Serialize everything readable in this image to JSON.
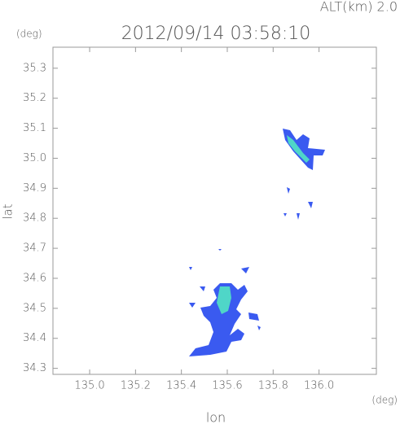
{
  "chart_data": {
    "type": "radar-map",
    "title": "2012/09/14 03:58:10",
    "altitude_label": "ALT(km)  2.0",
    "x_label": "lon",
    "y_label": "lat",
    "x_unit": "(deg)",
    "y_unit": "(deg)",
    "xlim": [
      134.84,
      136.25
    ],
    "ylim": [
      34.28,
      35.37
    ],
    "xticks": [
      {
        "value": 135.0,
        "label": "135.0"
      },
      135.2,
      135.4,
      135.6,
      135.8,
      {
        "value": 136.0,
        "label": "136.0"
      }
    ],
    "yticks": [
      34.3,
      34.4,
      34.5,
      34.6,
      34.7,
      34.8,
      34.9,
      {
        "value": 35.0,
        "label": "35.0"
      },
      35.1,
      35.2,
      35.3
    ]
  }
}
